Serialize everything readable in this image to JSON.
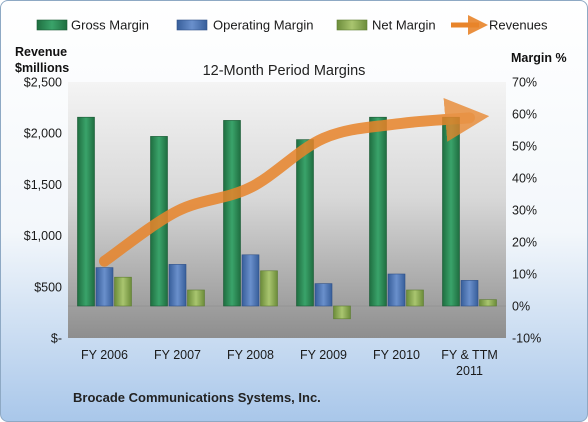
{
  "chart_data": {
    "type": "bar",
    "title": "12-Month Period Margins",
    "footer": "Brocade Communications Systems, Inc.",
    "categories": [
      "FY 2006",
      "FY 2007",
      "FY 2008",
      "FY 2009",
      "FY 2010",
      "FY & TTM 2011"
    ],
    "left_axis": {
      "title_line1": "Revenue",
      "title_line2": "$millions",
      "ylim": [
        0,
        2500
      ],
      "tick_values": [
        0,
        500,
        1000,
        1500,
        2000,
        2500
      ],
      "tick_labels": [
        "$-",
        "$500",
        "$1,000",
        "$1,500",
        "$2,000",
        "$2,500"
      ]
    },
    "right_axis": {
      "title": "Margin %",
      "ylim": [
        -10,
        70
      ],
      "tick_values": [
        -10,
        0,
        10,
        20,
        30,
        40,
        50,
        60,
        70
      ],
      "tick_labels": [
        "-10%",
        "0%",
        "10%",
        "20%",
        "30%",
        "40%",
        "50%",
        "60%",
        "70%"
      ]
    },
    "series": [
      {
        "name": "Gross Margin",
        "axis": "right",
        "kind": "bar",
        "color": "#2e8b57",
        "values": [
          59,
          53,
          58,
          52,
          59,
          59
        ]
      },
      {
        "name": "Operating Margin",
        "axis": "right",
        "kind": "bar",
        "color": "#4f78b8",
        "values": [
          12,
          13,
          16,
          7,
          10,
          8
        ]
      },
      {
        "name": "Net Margin",
        "axis": "right",
        "kind": "bar",
        "color": "#8fae5a",
        "values": [
          9,
          5,
          11,
          -4,
          5,
          2
        ]
      },
      {
        "name": "Revenues",
        "axis": "left",
        "kind": "line",
        "color": "#e8842a",
        "values": [
          750,
          1240,
          1470,
          1950,
          2090,
          2150
        ]
      }
    ],
    "legend_position": "top",
    "grid": false
  }
}
